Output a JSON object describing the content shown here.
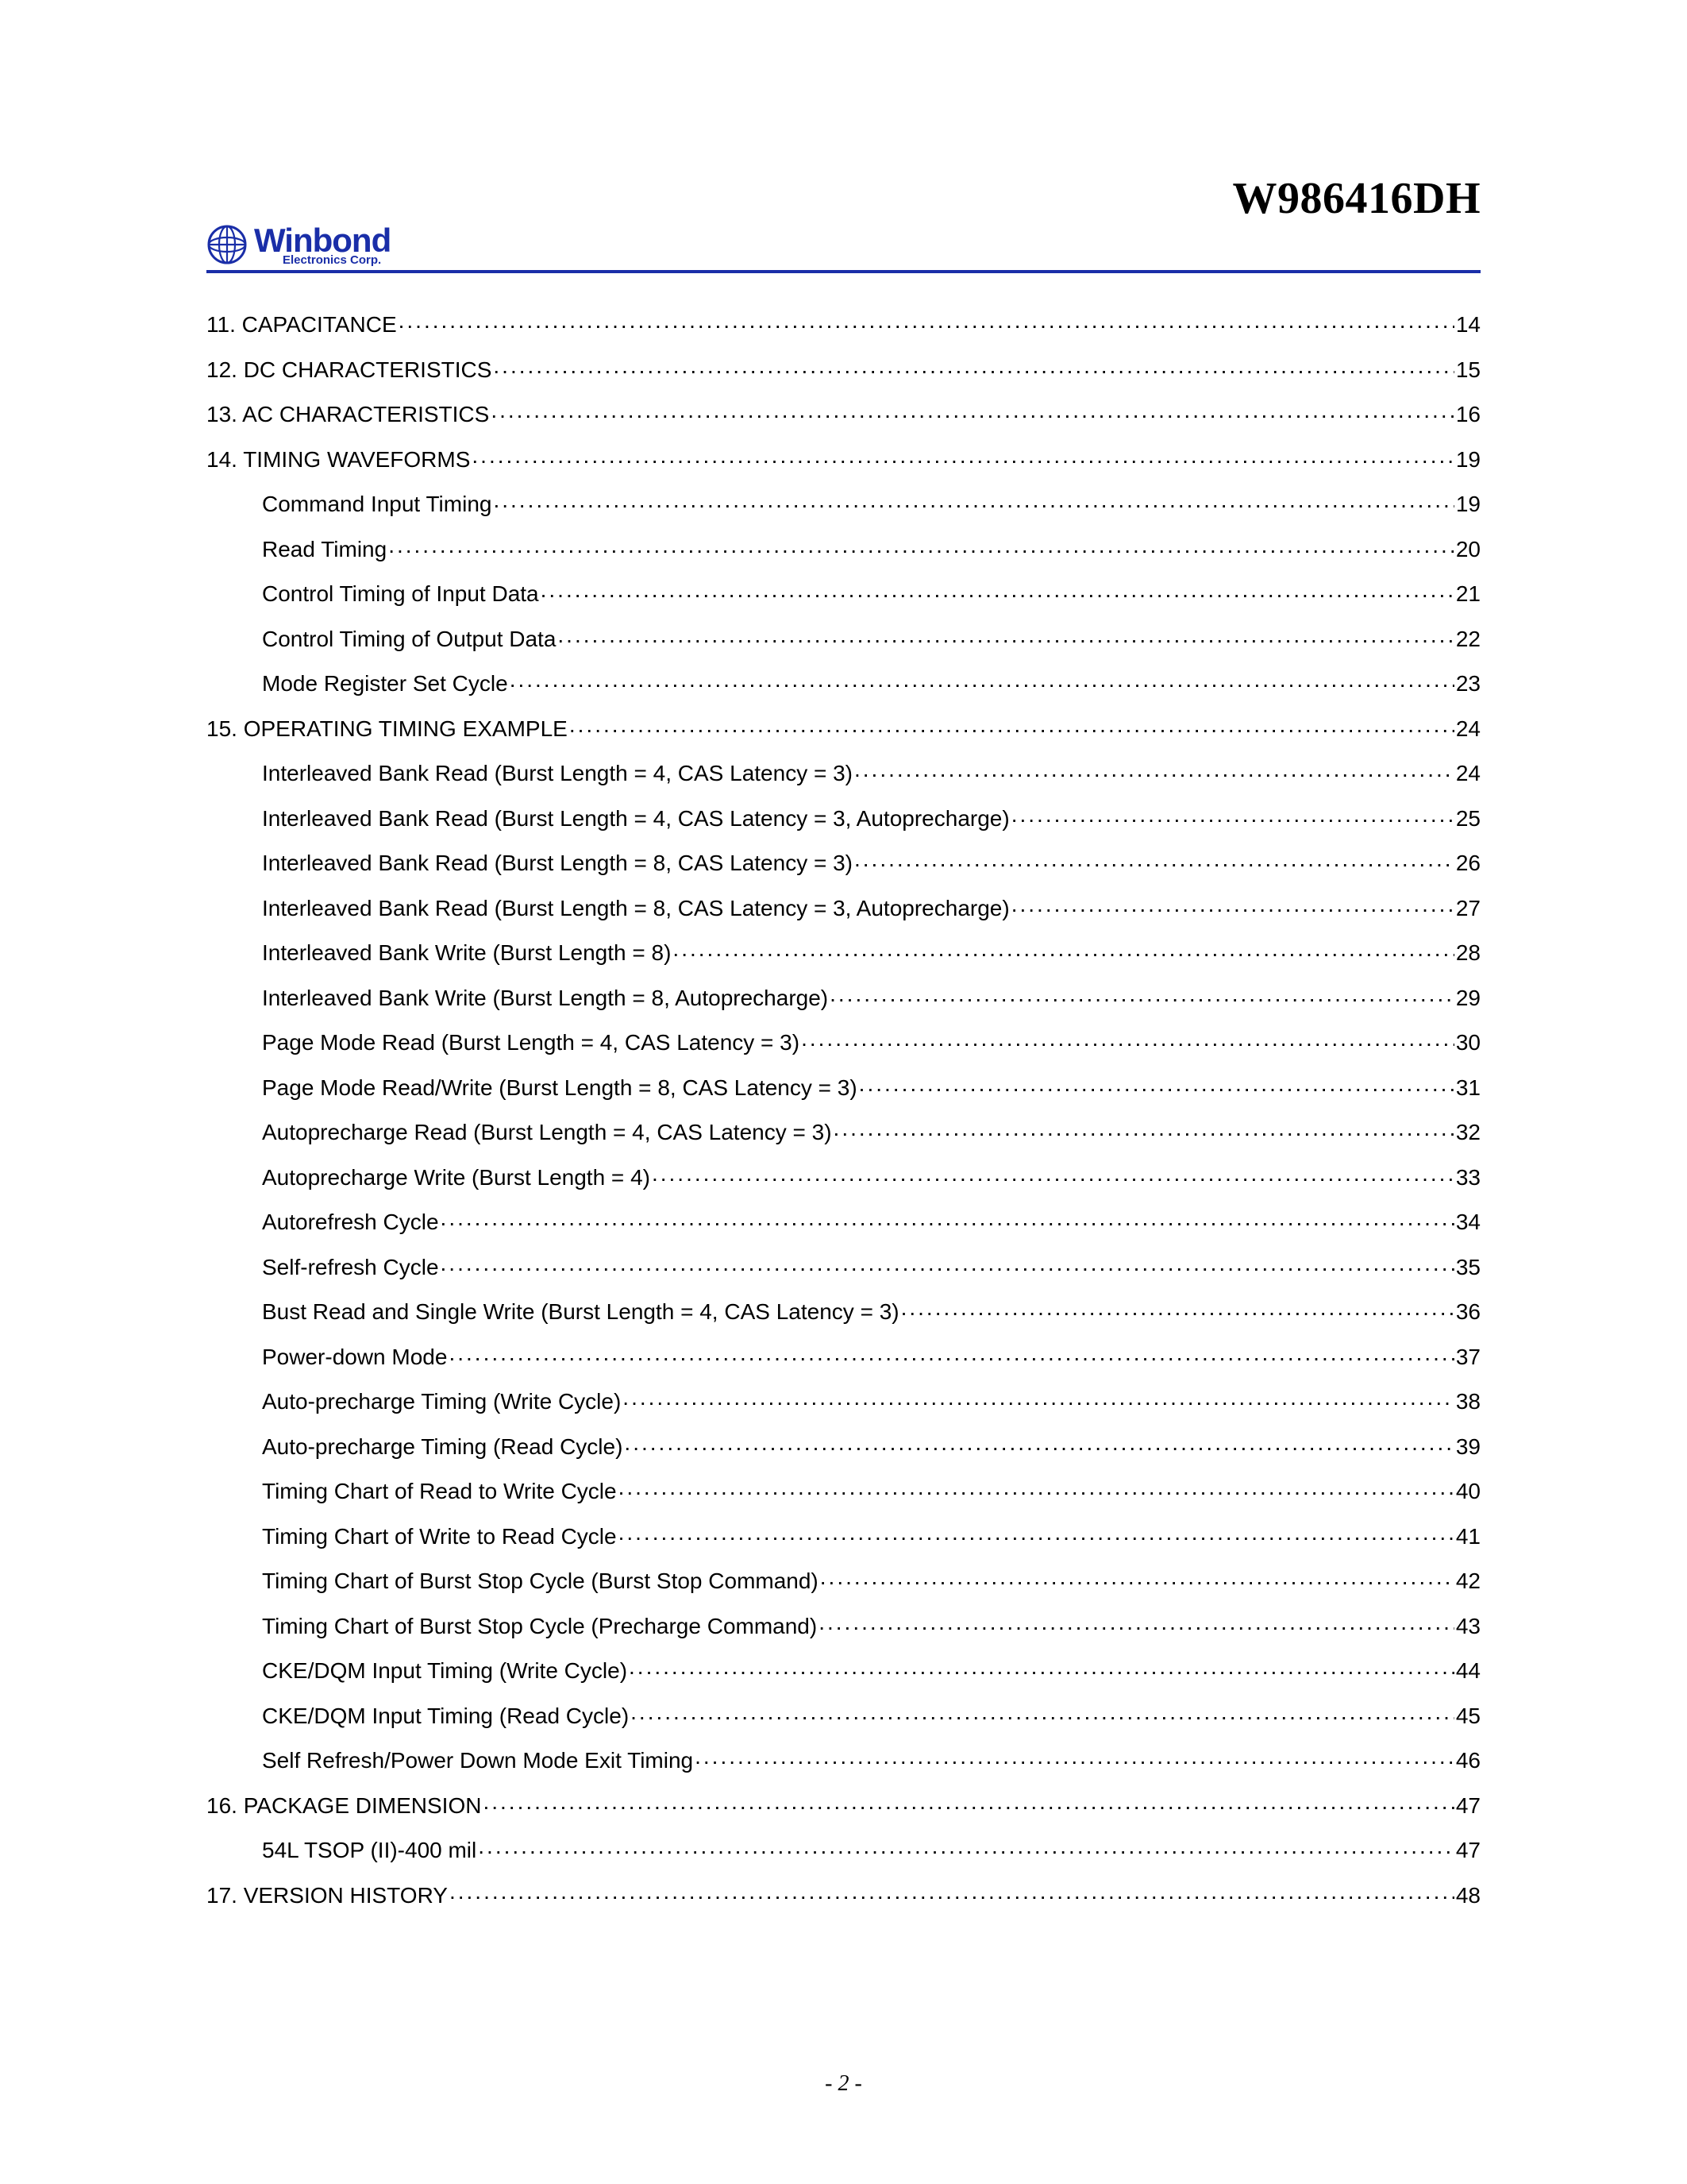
{
  "document": {
    "title": "W986416DH",
    "page_label": "- 2 -"
  },
  "logo": {
    "brand": "Winbond",
    "subtitle": "Electronics Corp.",
    "stroke_color": "#1a2ea8",
    "fill_color": "#4a5fd0"
  },
  "colors": {
    "rule": "#1a2ea8",
    "text": "#000000",
    "brand": "#1a2ea8"
  },
  "typography": {
    "title_family": "Times New Roman",
    "title_size_pt": 28,
    "body_family": "Arial",
    "toc_size_pt": 14
  },
  "toc": [
    {
      "level": 0,
      "label": "11. CAPACITANCE",
      "page": "14"
    },
    {
      "level": 0,
      "label": "12. DC CHARACTERISTICS",
      "page": "15"
    },
    {
      "level": 0,
      "label": "13. AC CHARACTERISTICS",
      "page": "16"
    },
    {
      "level": 0,
      "label": "14. TIMING WAVEFORMS",
      "page": "19"
    },
    {
      "level": 1,
      "label": "Command Input Timing",
      "page": "19"
    },
    {
      "level": 1,
      "label": "Read Timing",
      "page": "20"
    },
    {
      "level": 1,
      "label": "Control Timing of Input Data",
      "page": "21"
    },
    {
      "level": 1,
      "label": "Control Timing of Output Data",
      "page": "22"
    },
    {
      "level": 1,
      "label": "Mode Register Set Cycle",
      "page": "23"
    },
    {
      "level": 0,
      "label": "15. OPERATING TIMING EXAMPLE",
      "page": "24"
    },
    {
      "level": 1,
      "label": "Interleaved Bank Read (Burst Length = 4, CAS Latency = 3)",
      "page": "24"
    },
    {
      "level": 1,
      "label": "Interleaved Bank Read (Burst Length = 4, CAS Latency = 3, Autoprecharge)",
      "page": "25"
    },
    {
      "level": 1,
      "label": "Interleaved Bank Read (Burst Length = 8, CAS Latency = 3)",
      "page": "26"
    },
    {
      "level": 1,
      "label": "Interleaved Bank Read (Burst Length = 8, CAS Latency = 3, Autoprecharge)",
      "page": "27"
    },
    {
      "level": 1,
      "label": "Interleaved Bank Write (Burst Length = 8)",
      "page": "28"
    },
    {
      "level": 1,
      "label": "Interleaved Bank Write (Burst Length = 8, Autoprecharge)",
      "page": "29"
    },
    {
      "level": 1,
      "label": "Page Mode Read (Burst Length = 4, CAS Latency = 3)",
      "page": "30"
    },
    {
      "level": 1,
      "label": "Page Mode Read/Write (Burst Length = 8, CAS Latency = 3)",
      "page": "31"
    },
    {
      "level": 1,
      "label": "Autoprecharge Read (Burst Length = 4, CAS Latency = 3)",
      "page": "32"
    },
    {
      "level": 1,
      "label": "Autoprecharge Write (Burst Length = 4)",
      "page": "33"
    },
    {
      "level": 1,
      "label": "Autorefresh Cycle",
      "page": "34"
    },
    {
      "level": 1,
      "label": "Self-refresh Cycle",
      "page": "35"
    },
    {
      "level": 1,
      "label": "Bust Read and Single Write (Burst Length = 4, CAS Latency = 3)",
      "page": "36"
    },
    {
      "level": 1,
      "label": "Power-down Mode",
      "page": "37"
    },
    {
      "level": 1,
      "label": "Auto-precharge Timing (Write Cycle)",
      "page": "38"
    },
    {
      "level": 1,
      "label": "Auto-precharge Timing (Read Cycle)",
      "page": "39"
    },
    {
      "level": 1,
      "label": "Timing Chart of Read to Write Cycle",
      "page": "40"
    },
    {
      "level": 1,
      "label": "Timing Chart of Write to Read Cycle",
      "page": "41"
    },
    {
      "level": 1,
      "label": "Timing Chart of Burst Stop Cycle (Burst Stop Command)",
      "page": "42"
    },
    {
      "level": 1,
      "label": "Timing Chart of Burst Stop Cycle (Precharge Command)",
      "page": "43"
    },
    {
      "level": 1,
      "label": "CKE/DQM Input Timing (Write Cycle)",
      "page": "44"
    },
    {
      "level": 1,
      "label": "CKE/DQM Input Timing (Read Cycle)",
      "page": "45"
    },
    {
      "level": 1,
      "label": "Self Refresh/Power Down Mode Exit Timing",
      "page": "46"
    },
    {
      "level": 0,
      "label": "16. PACKAGE DIMENSION",
      "page": "47"
    },
    {
      "level": 1,
      "label": "54L TSOP (II)-400 mil",
      "page": "47"
    },
    {
      "level": 0,
      "label": "17. VERSION HISTORY",
      "page": "48"
    }
  ]
}
